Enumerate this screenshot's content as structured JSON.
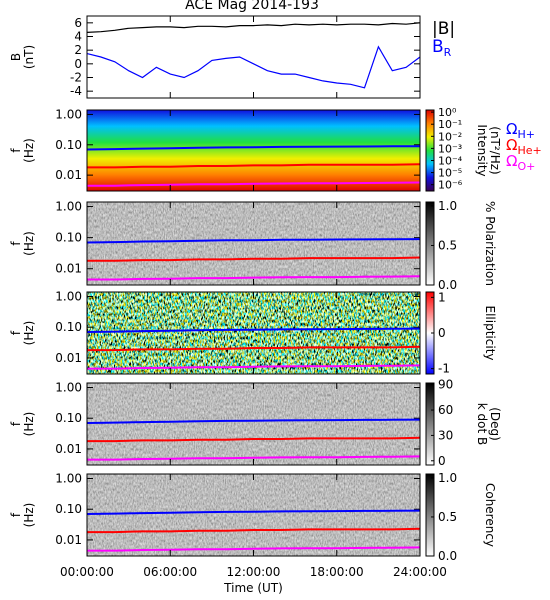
{
  "title": "ACE Mag 2014-193",
  "chart_data": [
    {
      "type": "line",
      "ylabel": [
        "B",
        "(nT)"
      ],
      "ylim": [
        -5,
        7
      ],
      "yticks": [
        -4,
        -2,
        0,
        2,
        4,
        6
      ],
      "x": [
        0,
        1,
        2,
        3,
        4,
        5,
        6,
        7,
        8,
        9,
        10,
        11,
        12,
        13,
        14,
        15,
        16,
        17,
        18,
        19,
        20,
        21,
        22,
        23,
        24
      ],
      "series": [
        {
          "name": "|B|",
          "color": "#000000",
          "values": [
            4.6,
            4.7,
            4.9,
            5.2,
            5.3,
            5.4,
            5.4,
            5.3,
            5.5,
            5.5,
            5.4,
            5.6,
            5.6,
            5.7,
            5.6,
            5.8,
            5.7,
            5.8,
            5.7,
            5.8,
            5.8,
            5.7,
            5.9,
            5.8,
            6.0
          ]
        },
        {
          "name": "B",
          "subscript": "R",
          "color": "#0000ff",
          "values": [
            1.5,
            1.0,
            0.3,
            -1.0,
            -2.0,
            -0.5,
            -1.5,
            -2.0,
            -1.0,
            0.5,
            0.8,
            1.0,
            0.0,
            -1.0,
            -1.5,
            -1.5,
            -2.0,
            -2.5,
            -2.8,
            -3.0,
            -3.5,
            2.5,
            -1.0,
            -0.5,
            1.0
          ]
        }
      ]
    },
    {
      "type": "spectrogram",
      "log_y": true,
      "ylabel": [
        "f",
        "(Hz)"
      ],
      "ylim": [
        0.003,
        1.4
      ],
      "yticks": [
        {
          "value": 1,
          "label": "1.00"
        },
        {
          "value": 0.1,
          "label": "0.10"
        },
        0.01
      ],
      "colorbar": {
        "label": [
          "Intensity",
          "(nT²/Hz)"
        ],
        "log": true,
        "lim": [
          3e-07,
          1.5
        ],
        "ticks": [
          {
            "value": 1,
            "label": "10⁰"
          },
          {
            "value": 0.1,
            "label": "10⁻¹"
          },
          {
            "value": 0.01,
            "label": "10⁻²"
          },
          {
            "value": 0.001,
            "label": "10⁻³"
          },
          {
            "value": 0.0001,
            "label": "10⁻⁴"
          },
          {
            "value": 1e-05,
            "label": "10⁻⁵"
          },
          {
            "value": 1e-06,
            "label": "10⁻⁶"
          }
        ],
        "colormap": [
          "#3a0050",
          "#1010e0",
          "#00c0ff",
          "#20e040",
          "#f0f000",
          "#ff8000",
          "#e00000"
        ]
      },
      "x": [
        0,
        2,
        4,
        6,
        8,
        10,
        12,
        14,
        16,
        18,
        20,
        22,
        24
      ],
      "series": [
        {
          "name": "Ω",
          "subscript": "H+",
          "color": "#0000ff",
          "values": [
            0.07,
            0.072,
            0.075,
            0.077,
            0.08,
            0.082,
            0.083,
            0.085,
            0.086,
            0.087,
            0.088,
            0.089,
            0.09
          ]
        },
        {
          "name": "Ω",
          "subscript": "He+",
          "color": "#ff0000",
          "values": [
            0.018,
            0.018,
            0.019,
            0.019,
            0.02,
            0.02,
            0.021,
            0.021,
            0.022,
            0.022,
            0.022,
            0.022,
            0.023
          ]
        },
        {
          "name": "Ω",
          "subscript": "O+",
          "color": "#ff00ff",
          "values": [
            0.0045,
            0.0045,
            0.0047,
            0.0048,
            0.005,
            0.005,
            0.0052,
            0.0053,
            0.0054,
            0.0054,
            0.0055,
            0.0056,
            0.0057
          ]
        }
      ]
    },
    {
      "type": "spectrogram",
      "log_y": true,
      "ylabel": [
        "f",
        "(Hz)"
      ],
      "ylim": [
        0.003,
        1.4
      ],
      "yticks": [
        {
          "value": 1,
          "label": "1.00"
        },
        {
          "value": 0.1,
          "label": "0.10"
        },
        0.01
      ],
      "colorbar": {
        "label": [
          "% Polarization"
        ],
        "log": false,
        "lim": [
          0,
          1.05
        ],
        "ticks": [
          {
            "value": 1,
            "label": "1.0"
          },
          0.5,
          {
            "value": 0,
            "label": "0.0"
          }
        ],
        "colormap": [
          "#ffffff",
          "#000000"
        ]
      },
      "x": [
        0,
        2,
        4,
        6,
        8,
        10,
        12,
        14,
        16,
        18,
        20,
        22,
        24
      ],
      "series": [
        {
          "color": "#0000ff",
          "values": [
            0.07,
            0.072,
            0.075,
            0.077,
            0.08,
            0.082,
            0.083,
            0.085,
            0.086,
            0.087,
            0.088,
            0.089,
            0.09
          ]
        },
        {
          "color": "#ff0000",
          "values": [
            0.018,
            0.018,
            0.019,
            0.019,
            0.02,
            0.02,
            0.021,
            0.021,
            0.022,
            0.022,
            0.022,
            0.022,
            0.023
          ]
        },
        {
          "color": "#ff00ff",
          "values": [
            0.0045,
            0.0045,
            0.0047,
            0.0048,
            0.005,
            0.005,
            0.0052,
            0.0053,
            0.0054,
            0.0054,
            0.0055,
            0.0056,
            0.0057
          ]
        }
      ]
    },
    {
      "type": "spectrogram",
      "log_y": true,
      "ylabel": [
        "f",
        "(Hz)"
      ],
      "ylim": [
        0.003,
        1.4
      ],
      "yticks": [
        {
          "value": 1,
          "label": "1.00"
        },
        {
          "value": 0.1,
          "label": "0.10"
        },
        0.01
      ],
      "colorbar": {
        "label": [
          "Ellipticity"
        ],
        "log": false,
        "lim": [
          -1.15,
          1.15
        ],
        "ticks": [
          1,
          0,
          -1
        ],
        "colormap": [
          "#0000ff",
          "#ffffff",
          "#ff0000"
        ]
      },
      "x": [
        0,
        2,
        4,
        6,
        8,
        10,
        12,
        14,
        16,
        18,
        20,
        22,
        24
      ],
      "series": [
        {
          "color": "#0000ff",
          "values": [
            0.07,
            0.072,
            0.075,
            0.077,
            0.08,
            0.082,
            0.083,
            0.085,
            0.086,
            0.087,
            0.088,
            0.089,
            0.09
          ]
        },
        {
          "color": "#ff0000",
          "values": [
            0.018,
            0.018,
            0.019,
            0.019,
            0.02,
            0.02,
            0.021,
            0.021,
            0.022,
            0.022,
            0.022,
            0.022,
            0.023
          ]
        },
        {
          "color": "#ff00ff",
          "values": [
            0.0045,
            0.0045,
            0.0047,
            0.0048,
            0.005,
            0.005,
            0.0052,
            0.0053,
            0.0054,
            0.0054,
            0.0055,
            0.0056,
            0.0057
          ]
        }
      ]
    },
    {
      "type": "spectrogram",
      "log_y": true,
      "ylabel": [
        "f",
        "(Hz)"
      ],
      "ylim": [
        0.003,
        1.4
      ],
      "yticks": [
        {
          "value": 1,
          "label": "1.00"
        },
        {
          "value": 0.1,
          "label": "0.10"
        },
        0.01
      ],
      "colorbar": {
        "label": [
          "k dot B",
          "(Deg)"
        ],
        "log": false,
        "lim": [
          -5,
          92
        ],
        "ticks": [
          90,
          60,
          30,
          0
        ],
        "colormap": [
          "#ffffff",
          "#000000"
        ]
      },
      "x": [
        0,
        2,
        4,
        6,
        8,
        10,
        12,
        14,
        16,
        18,
        20,
        22,
        24
      ],
      "series": [
        {
          "color": "#0000ff",
          "values": [
            0.07,
            0.072,
            0.075,
            0.077,
            0.08,
            0.082,
            0.083,
            0.085,
            0.086,
            0.087,
            0.088,
            0.089,
            0.09
          ]
        },
        {
          "color": "#ff0000",
          "values": [
            0.018,
            0.018,
            0.019,
            0.019,
            0.02,
            0.02,
            0.021,
            0.021,
            0.022,
            0.022,
            0.022,
            0.022,
            0.023
          ]
        },
        {
          "color": "#ff00ff",
          "values": [
            0.0045,
            0.0045,
            0.0047,
            0.0048,
            0.005,
            0.005,
            0.0052,
            0.0053,
            0.0054,
            0.0054,
            0.0055,
            0.0056,
            0.0057
          ]
        }
      ]
    },
    {
      "type": "spectrogram",
      "log_y": true,
      "ylabel": [
        "f",
        "(Hz)"
      ],
      "ylim": [
        0.003,
        1.4
      ],
      "yticks": [
        {
          "value": 1,
          "label": "1.00"
        },
        {
          "value": 0.1,
          "label": "0.10"
        },
        0.01
      ],
      "colorbar": {
        "label": [
          "Coherency"
        ],
        "log": false,
        "lim": [
          0,
          1.05
        ],
        "ticks": [
          {
            "value": 1,
            "label": "1.0"
          },
          0.5,
          {
            "value": 0,
            "label": "0.0"
          }
        ],
        "colormap": [
          "#ffffff",
          "#000000"
        ]
      },
      "x": [
        0,
        2,
        4,
        6,
        8,
        10,
        12,
        14,
        16,
        18,
        20,
        22,
        24
      ],
      "xlabel": "Time (UT)",
      "xlim": [
        0,
        24
      ],
      "xticks": [
        {
          "value": 0,
          "label": "00:00:00"
        },
        {
          "value": 6,
          "label": "06:00:00"
        },
        {
          "value": 12,
          "label": "12:00:00"
        },
        {
          "value": 18,
          "label": "18:00:00"
        },
        {
          "value": 24,
          "label": "24:00:00"
        }
      ],
      "series": [
        {
          "color": "#0000ff",
          "values": [
            0.07,
            0.072,
            0.075,
            0.077,
            0.08,
            0.082,
            0.083,
            0.085,
            0.086,
            0.087,
            0.088,
            0.089,
            0.09
          ]
        },
        {
          "color": "#ff0000",
          "values": [
            0.018,
            0.018,
            0.019,
            0.019,
            0.02,
            0.02,
            0.021,
            0.021,
            0.022,
            0.022,
            0.022,
            0.022,
            0.023
          ]
        },
        {
          "color": "#ff00ff",
          "values": [
            0.0045,
            0.0045,
            0.0047,
            0.0048,
            0.005,
            0.005,
            0.0052,
            0.0053,
            0.0054,
            0.0054,
            0.0055,
            0.0056,
            0.0057
          ]
        }
      ]
    }
  ]
}
